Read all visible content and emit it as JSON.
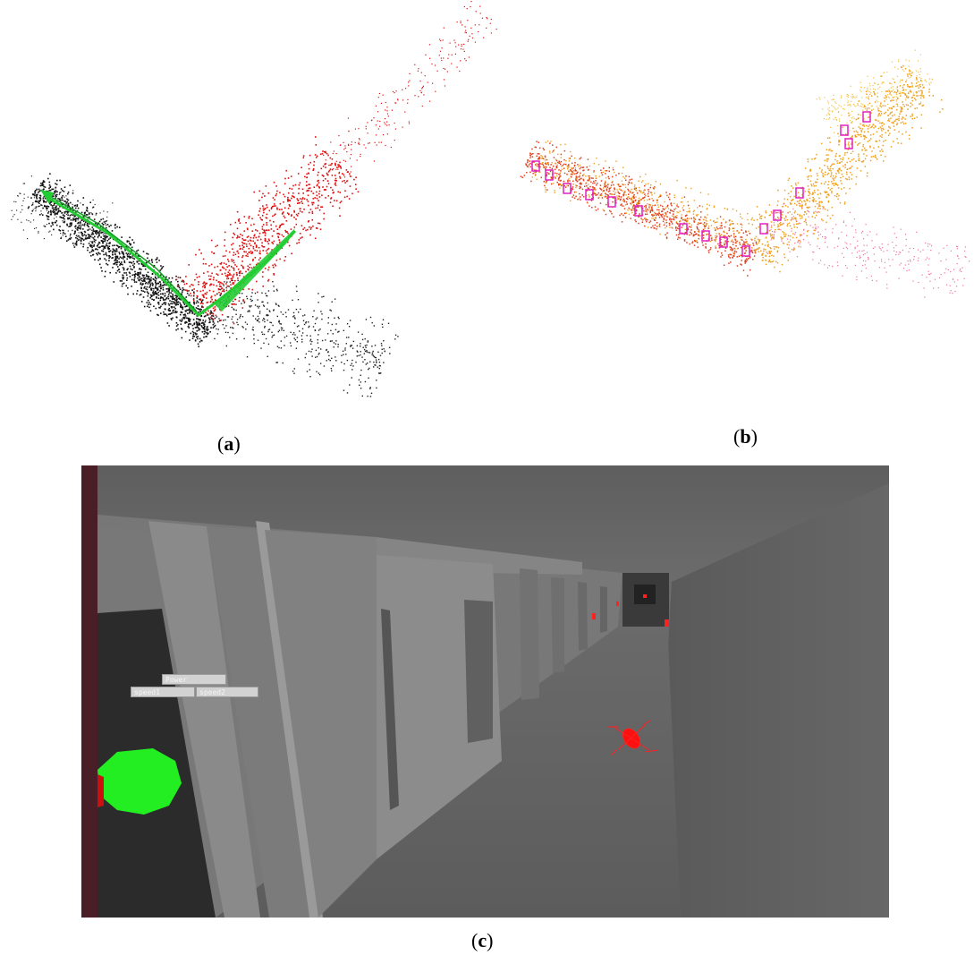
{
  "captions": {
    "a": "a",
    "b": "b",
    "c": "c"
  },
  "hud": {
    "power": "Power",
    "speed1": "speed1",
    "speed2": "speed2"
  },
  "colors": {
    "map_points_black": "#111111",
    "map_points_red": "#e01010",
    "trajectory_green": "#22cc33",
    "keyframes_magenta": "#e020c0",
    "points_orange": "#f0a020",
    "corridor_gray": "#707070",
    "goal_green": "#22ee22",
    "drone_red": "#ff0000"
  },
  "icons": {
    "drone": "quadrotor-icon",
    "goal": "green-sphere-marker"
  }
}
